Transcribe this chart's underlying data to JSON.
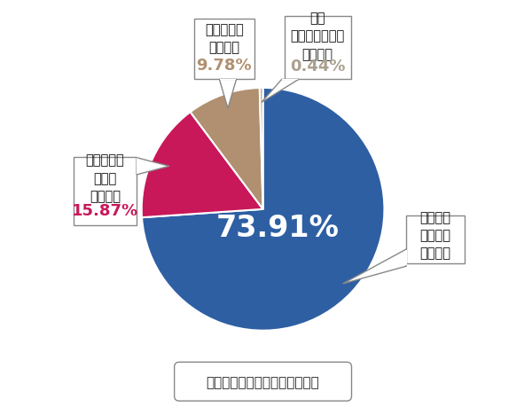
{
  "slices": [
    73.91,
    15.87,
    9.78,
    0.44
  ],
  "colors": [
    "#2e5fa3",
    "#c8185a",
    "#b09070",
    "#c0b0a0"
  ],
  "pcts": [
    "73.91%",
    "15.87%",
    "9.78%",
    "0.44%"
  ],
  "pct_colors": [
    "#ffffff",
    "#c8185a",
    "#b09070",
    "#aaa090"
  ],
  "start_angle": 90,
  "bottom_note": "利用しない方が良かった　０件",
  "label0_lines": [
    "利用して",
    "たいへん",
    "良かった"
  ],
  "label1_lines": [
    "利用しない",
    "よりは",
    "良かった"
  ],
  "label2_lines": [
    "どちらとも",
    "いえない"
  ],
  "label3_lines": [
    "特に",
    "利用しなくても",
    "良かった"
  ],
  "big_pct_fontsize": 24,
  "label_fontsize": 10.5,
  "pct_fontsize": 13,
  "note_fontsize": 11
}
